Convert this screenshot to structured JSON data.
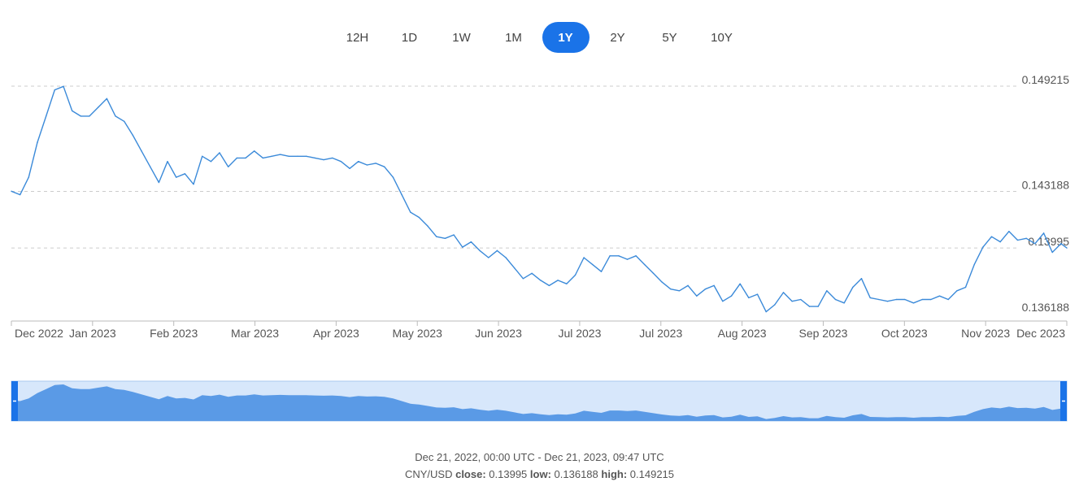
{
  "range_selector": {
    "buttons": [
      "12H",
      "1D",
      "1W",
      "1M",
      "1Y",
      "2Y",
      "5Y",
      "10Y"
    ],
    "selected": "1Y"
  },
  "colors": {
    "accent": "#1a73e8",
    "line": "#3b8ad9",
    "grid": "#cccccc",
    "navigator_fill": "#5a9ae6",
    "navigator_bg": "#d7e7fb",
    "axis_text": "#555555"
  },
  "chart_data": {
    "type": "line",
    "ylim": [
      0.136188,
      0.149215
    ],
    "y_ticks": [
      "0.149215",
      "0.143188",
      "0.13995",
      "0.136188"
    ],
    "x_tick_labels": [
      "Dec 2022",
      "Jan 2023",
      "Feb 2023",
      "Mar 2023",
      "Apr 2023",
      "May 2023",
      "Jun 2023",
      "Jul 2023",
      "Jul 2023",
      "Aug 2023",
      "Sep 2023",
      "Oct 2023",
      "Nov 2023",
      "Dec 2023"
    ],
    "x_start": "2022-12-21",
    "x_end": "2023-12-21",
    "grid": true,
    "series": [
      {
        "x": [
          "2022-12-21",
          "2022-12-24",
          "2022-12-27",
          "2022-12-30",
          "2023-01-02",
          "2023-01-05",
          "2023-01-08",
          "2023-01-11",
          "2023-01-14",
          "2023-01-17",
          "2023-01-20",
          "2023-01-23",
          "2023-01-26",
          "2023-01-29",
          "2023-02-01",
          "2023-02-04",
          "2023-02-07",
          "2023-02-10",
          "2023-02-13",
          "2023-02-16",
          "2023-02-19",
          "2023-02-22",
          "2023-02-25",
          "2023-02-28",
          "2023-03-03",
          "2023-03-06",
          "2023-03-09",
          "2023-03-12",
          "2023-03-15",
          "2023-03-18",
          "2023-03-21",
          "2023-03-24",
          "2023-03-27",
          "2023-03-30",
          "2023-04-02",
          "2023-04-05",
          "2023-04-08",
          "2023-04-11",
          "2023-04-14",
          "2023-04-17",
          "2023-04-20",
          "2023-04-23",
          "2023-04-26",
          "2023-04-29",
          "2023-05-02",
          "2023-05-05",
          "2023-05-08",
          "2023-05-11",
          "2023-05-14",
          "2023-05-17",
          "2023-05-20",
          "2023-05-23",
          "2023-05-26",
          "2023-05-29",
          "2023-06-01",
          "2023-06-04",
          "2023-06-07",
          "2023-06-10",
          "2023-06-13",
          "2023-06-16",
          "2023-06-19",
          "2023-06-22",
          "2023-06-25",
          "2023-06-28",
          "2023-07-01",
          "2023-07-04",
          "2023-07-07",
          "2023-07-10",
          "2023-07-13",
          "2023-07-16",
          "2023-07-19",
          "2023-07-22",
          "2023-07-25",
          "2023-07-28",
          "2023-07-31",
          "2023-08-03",
          "2023-08-06",
          "2023-08-09",
          "2023-08-12",
          "2023-08-15",
          "2023-08-18",
          "2023-08-21",
          "2023-08-24",
          "2023-08-27",
          "2023-08-30",
          "2023-09-02",
          "2023-09-05",
          "2023-09-08",
          "2023-09-11",
          "2023-09-14",
          "2023-09-17",
          "2023-09-20",
          "2023-09-23",
          "2023-09-26",
          "2023-09-29",
          "2023-10-02",
          "2023-10-05",
          "2023-10-08",
          "2023-10-11",
          "2023-10-14",
          "2023-10-17",
          "2023-10-20",
          "2023-10-23",
          "2023-10-26",
          "2023-10-29",
          "2023-11-01",
          "2023-11-04",
          "2023-11-07",
          "2023-11-10",
          "2023-11-13",
          "2023-11-16",
          "2023-11-19",
          "2023-11-22",
          "2023-11-25",
          "2023-11-28",
          "2023-12-01",
          "2023-12-04",
          "2023-12-07",
          "2023-12-10",
          "2023-12-13",
          "2023-12-16",
          "2023-12-19",
          "2023-12-21"
        ],
        "values": [
          0.1432,
          0.143,
          0.144,
          0.146,
          0.1475,
          0.149,
          0.1492,
          0.1478,
          0.1475,
          0.1475,
          0.148,
          0.1485,
          0.1475,
          0.1472,
          0.1464,
          0.1455,
          0.1446,
          0.1437,
          0.1449,
          0.144,
          0.1442,
          0.1436,
          0.1452,
          0.1449,
          0.1454,
          0.1446,
          0.1451,
          0.1451,
          0.1455,
          0.1451,
          0.1452,
          0.1453,
          0.1452,
          0.1452,
          0.1452,
          0.1451,
          0.145,
          0.1451,
          0.1449,
          0.1445,
          0.1449,
          0.1447,
          0.1448,
          0.1446,
          0.144,
          0.143,
          0.142,
          0.1417,
          0.1412,
          0.1406,
          0.1405,
          0.1407,
          0.14,
          0.1403,
          0.1398,
          0.1394,
          0.1398,
          0.1394,
          0.1388,
          0.1382,
          0.1385,
          0.1381,
          0.1378,
          0.1381,
          0.1379,
          0.1384,
          0.1394,
          0.139,
          0.1386,
          0.1395,
          0.1395,
          0.1393,
          0.1395,
          0.139,
          0.1385,
          0.138,
          0.1376,
          0.1375,
          0.1378,
          0.1372,
          0.1376,
          0.1378,
          0.1369,
          0.1372,
          0.1379,
          0.1371,
          0.1373,
          0.1363,
          0.1367,
          0.1374,
          0.1369,
          0.137,
          0.1366,
          0.1366,
          0.1375,
          0.137,
          0.1368,
          0.1377,
          0.1382,
          0.1371,
          0.137,
          0.1369,
          0.137,
          0.137,
          0.1368,
          0.137,
          0.137,
          0.1372,
          0.137,
          0.1375,
          0.1377,
          0.139,
          0.14,
          0.1406,
          0.1403,
          0.1409,
          0.1404,
          0.1405,
          0.1402,
          0.1408,
          0.1397,
          0.1402,
          0.13995
        ]
      }
    ]
  },
  "footer": {
    "date_range": "Dec 21, 2022, 00:00 UTC - Dec 21, 2023, 09:47 UTC",
    "pair": "CNY/USD",
    "close_label": "close:",
    "close_value": "0.13995",
    "low_label": "low:",
    "low_value": "0.136188",
    "high_label": "high:",
    "high_value": "0.149215"
  }
}
